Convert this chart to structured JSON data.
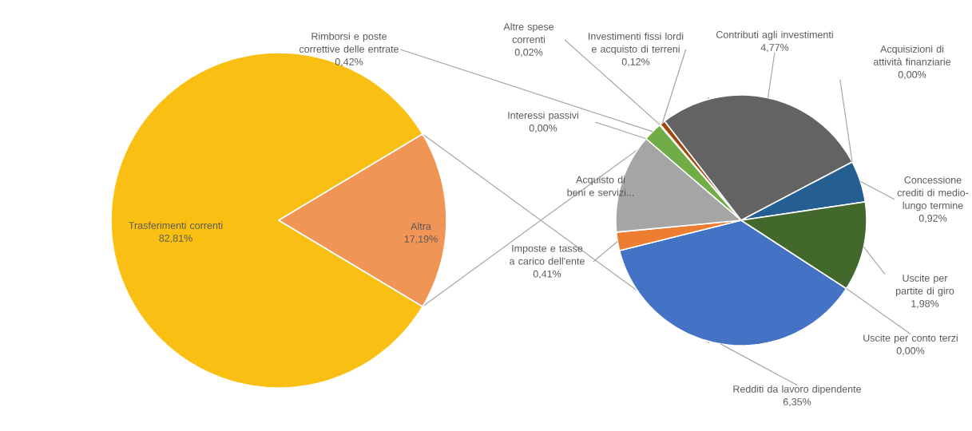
{
  "chart_data": [
    {
      "type": "pie",
      "categories": [
        "Trasferimenti correnti",
        "Altra"
      ],
      "values": [
        82.81,
        17.19
      ],
      "colors": [
        "#F9C013",
        "#F09556"
      ],
      "value_labels": [
        "82,81%",
        "17,19%"
      ]
    },
    {
      "type": "pie",
      "categories": [
        "Redditi da lavoro dipendente",
        "Imposte e tasse a carico dell'ente",
        "Acquisto di beni e servizi...",
        "Interessi passivi",
        "Rimborsi e poste correttive delle entrate",
        "Altre spese correnti",
        "Investimenti fissi lordi e acquisto di terreni",
        "Contributi agli investimenti",
        "Acquisizioni di attività finanziarie",
        "Concessione crediti di medio-lungo termine",
        "Uscite per partite di giro",
        "Uscite per conto terzi"
      ],
      "values": [
        6.35,
        0.41,
        2.2,
        0.0,
        0.42,
        0.02,
        0.12,
        4.77,
        0.0,
        0.92,
        1.98,
        0.0
      ],
      "colors": [
        "#4472C4",
        "#ED7D31",
        "#A5A5A5",
        "#5B9BD5",
        "#70AD47",
        "#264478",
        "#9E480E",
        "#636363",
        "#997300",
        "#255E91",
        "#43682B",
        "#698ED0"
      ],
      "value_labels": [
        "6,35%",
        "0,41%",
        null,
        "0,00%",
        "0,42%",
        "0,02%",
        "0,12%",
        "4,77%",
        "0,00%",
        "0,92%",
        "1,98%",
        "0,00%"
      ]
    }
  ]
}
